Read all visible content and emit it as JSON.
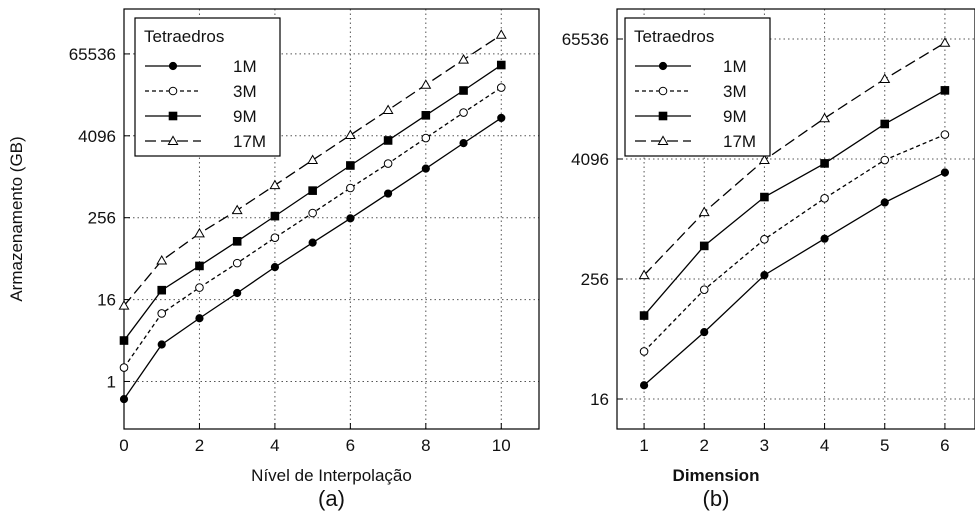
{
  "chart_data": [
    {
      "type": "line",
      "caption": "(a)",
      "xlabel": "Nível de Interpolação",
      "ylabel": "Armazenamento (GB)",
      "yscale": "log2",
      "xlim": [
        0,
        11
      ],
      "ylim": [
        0.2,
        300000
      ],
      "xticks": [
        0,
        2,
        4,
        6,
        8,
        10
      ],
      "yticks": [
        1,
        16,
        256,
        4096,
        65536
      ],
      "ytick_labels": [
        "1",
        "16",
        "256",
        "4096",
        "65536"
      ],
      "grid": true,
      "legend": {
        "title": "Tetraedros",
        "position": "top-left"
      },
      "x": [
        0,
        1,
        2,
        3,
        4,
        5,
        6,
        7,
        8,
        9,
        10
      ],
      "series": [
        {
          "name": "1M",
          "marker": "filled-circle",
          "linestyle": "solid",
          "values": [
            0.55,
            3.5,
            8.5,
            20,
            48,
            110,
            250,
            580,
            1350,
            3200,
            7500
          ]
        },
        {
          "name": "3M",
          "marker": "open-circle",
          "linestyle": "dashed",
          "values": [
            1.6,
            10,
            24,
            55,
            130,
            300,
            700,
            1600,
            3800,
            9000,
            21000
          ]
        },
        {
          "name": "9M",
          "marker": "filled-square",
          "linestyle": "solid",
          "values": [
            4,
            22,
            50,
            115,
            270,
            640,
            1500,
            3500,
            8200,
            19000,
            45000
          ]
        },
        {
          "name": "17M",
          "marker": "open-triangle",
          "linestyle": "long-dashed",
          "values": [
            13,
            60,
            150,
            330,
            770,
            1800,
            4200,
            9800,
            23000,
            54000,
            125000
          ]
        }
      ]
    },
    {
      "type": "line",
      "caption": "(b)",
      "xlabel": "Dimension",
      "ylabel": "",
      "yscale": "log2",
      "xlim": [
        0.55,
        6.5
      ],
      "ylim": [
        8,
        131072
      ],
      "xticks": [
        1,
        2,
        3,
        4,
        5,
        6
      ],
      "yticks": [
        16,
        256,
        4096,
        65536
      ],
      "ytick_labels": [
        "16",
        "256",
        "4096",
        "65536"
      ],
      "grid": true,
      "legend": {
        "title": "Tetraedros",
        "position": "top-left"
      },
      "x": [
        1,
        2,
        3,
        4,
        5,
        6
      ],
      "series": [
        {
          "name": "1M",
          "marker": "filled-circle",
          "linestyle": "solid",
          "values": [
            22,
            75,
            280,
            650,
            1500,
            3000
          ]
        },
        {
          "name": "3M",
          "marker": "open-circle",
          "linestyle": "dashed",
          "values": [
            48,
            200,
            640,
            1650,
            4000,
            7200
          ]
        },
        {
          "name": "9M",
          "marker": "filled-square",
          "linestyle": "solid",
          "values": [
            110,
            550,
            1700,
            3700,
            9200,
            20000
          ]
        },
        {
          "name": "17M",
          "marker": "open-triangle",
          "linestyle": "long-dashed",
          "values": [
            280,
            1200,
            4000,
            10500,
            26000,
            60000
          ]
        }
      ]
    }
  ]
}
